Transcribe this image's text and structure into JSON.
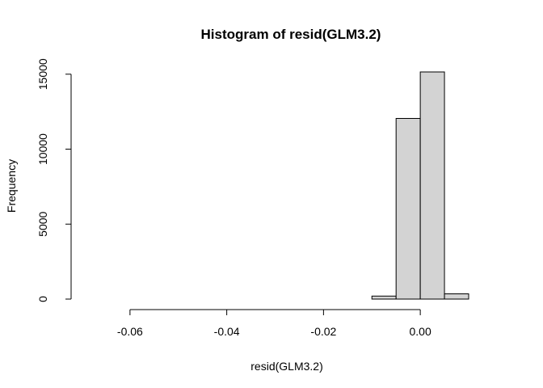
{
  "chart_data": {
    "type": "bar",
    "title": "Histogram of resid(GLM3.2)",
    "xlabel": "resid(GLM3.2)",
    "ylabel": "Frequency",
    "bin_edges": [
      -0.07,
      -0.065,
      -0.06,
      -0.055,
      -0.05,
      -0.045,
      -0.04,
      -0.035,
      -0.03,
      -0.025,
      -0.02,
      -0.015,
      -0.01,
      -0.005,
      0.0,
      0.005,
      0.01
    ],
    "values": [
      0,
      0,
      0,
      0,
      0,
      0,
      0,
      0,
      0,
      0,
      0,
      0,
      200,
      12050,
      15150,
      350
    ],
    "xlim": [
      -0.07,
      0.01
    ],
    "ylim": [
      0,
      15150
    ],
    "x_ticks": [
      -0.06,
      -0.04,
      -0.02,
      0.0
    ],
    "x_tick_labels": [
      "-0.06",
      "-0.04",
      "-0.02",
      "0.00"
    ],
    "y_ticks": [
      0,
      5000,
      10000,
      15000
    ],
    "y_tick_labels": [
      "0",
      "5000",
      "10000",
      "15000"
    ],
    "grid": false,
    "bar_color": "#d3d3d3",
    "border_color": "#000000"
  }
}
